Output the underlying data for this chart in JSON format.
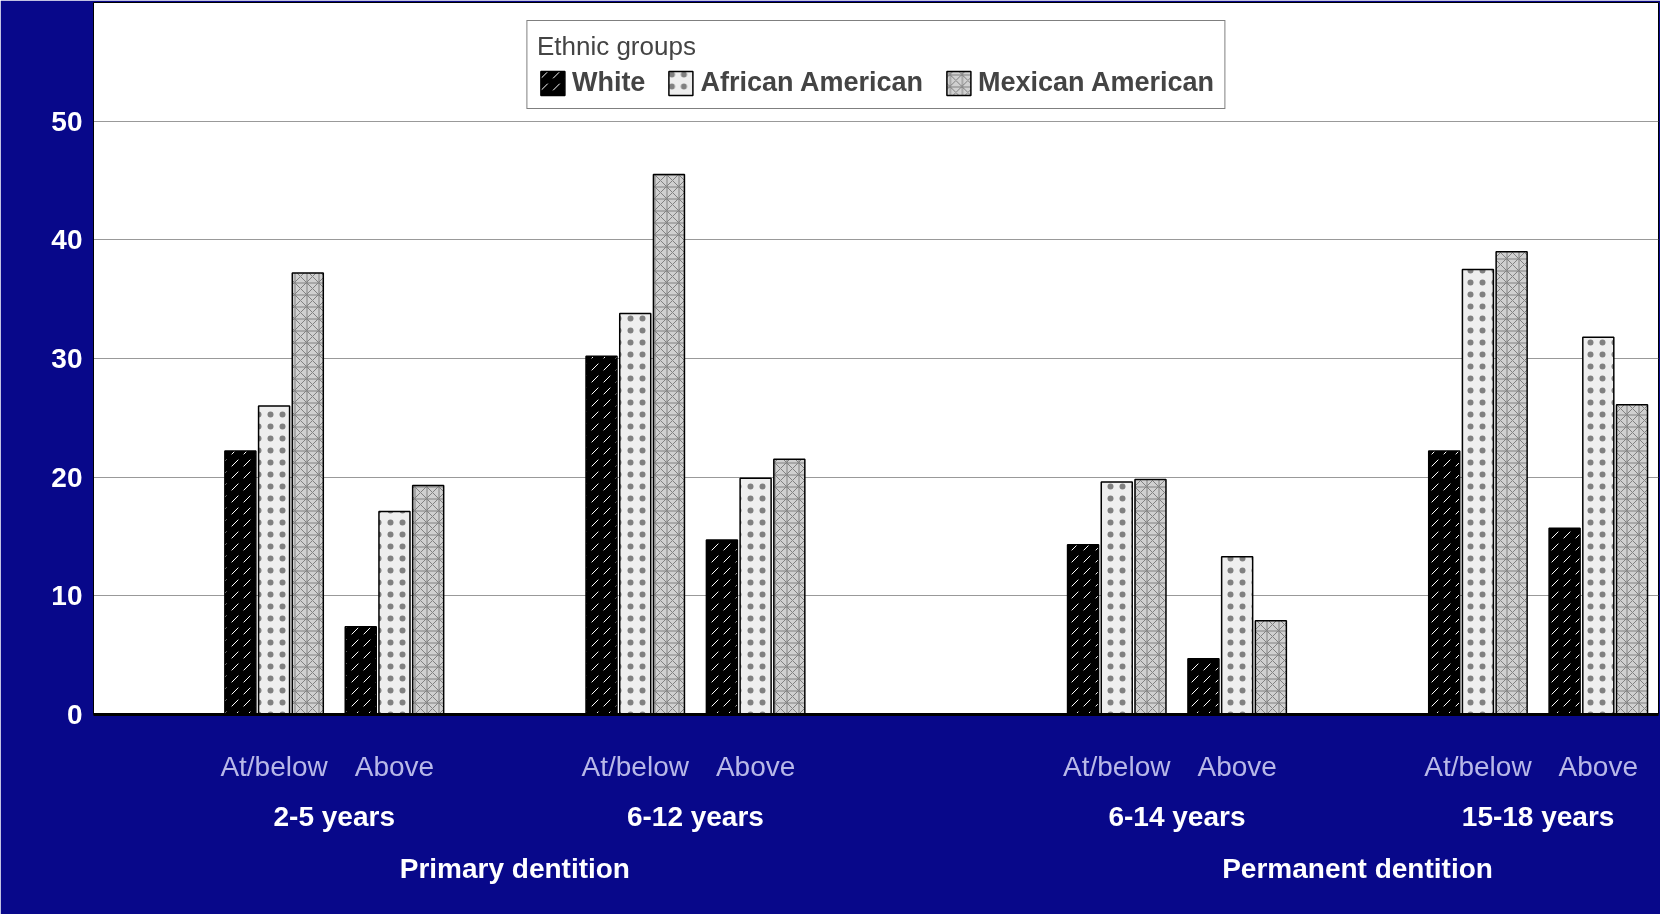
{
  "chart_data": {
    "type": "bar",
    "legend_title": "Ethnic groups",
    "legend": "top",
    "categories": [
      null,
      "At/below",
      "Above",
      null,
      "At/below",
      "Above",
      null,
      null,
      "At/below",
      "Above",
      null,
      "At/below",
      "Above"
    ],
    "series": [
      {
        "name": "White",
        "color": "#000000",
        "values": [
          null,
          22.2,
          7.4,
          null,
          30.2,
          14.7,
          null,
          null,
          14.3,
          4.7,
          null,
          22.2,
          15.7
        ]
      },
      {
        "name": "African American",
        "color": "#eeeeee",
        "values": [
          null,
          26.0,
          17.1,
          null,
          33.8,
          19.9,
          null,
          null,
          19.6,
          13.3,
          null,
          37.5,
          31.8
        ]
      },
      {
        "name": "Mexican American",
        "color": "#d0d0d0",
        "values": [
          null,
          37.2,
          19.3,
          null,
          45.5,
          21.5,
          null,
          null,
          19.8,
          7.9,
          null,
          39.0,
          26.1
        ]
      }
    ],
    "annotations": [
      "2-5 years",
      "6-12 years",
      "6-14 years",
      "15-18 years",
      "Primary dentition",
      "Permanent dentition"
    ],
    "ylim": [
      0,
      60
    ],
    "yticks": [
      0,
      10,
      20,
      30,
      40,
      50
    ],
    "grid": "y"
  }
}
